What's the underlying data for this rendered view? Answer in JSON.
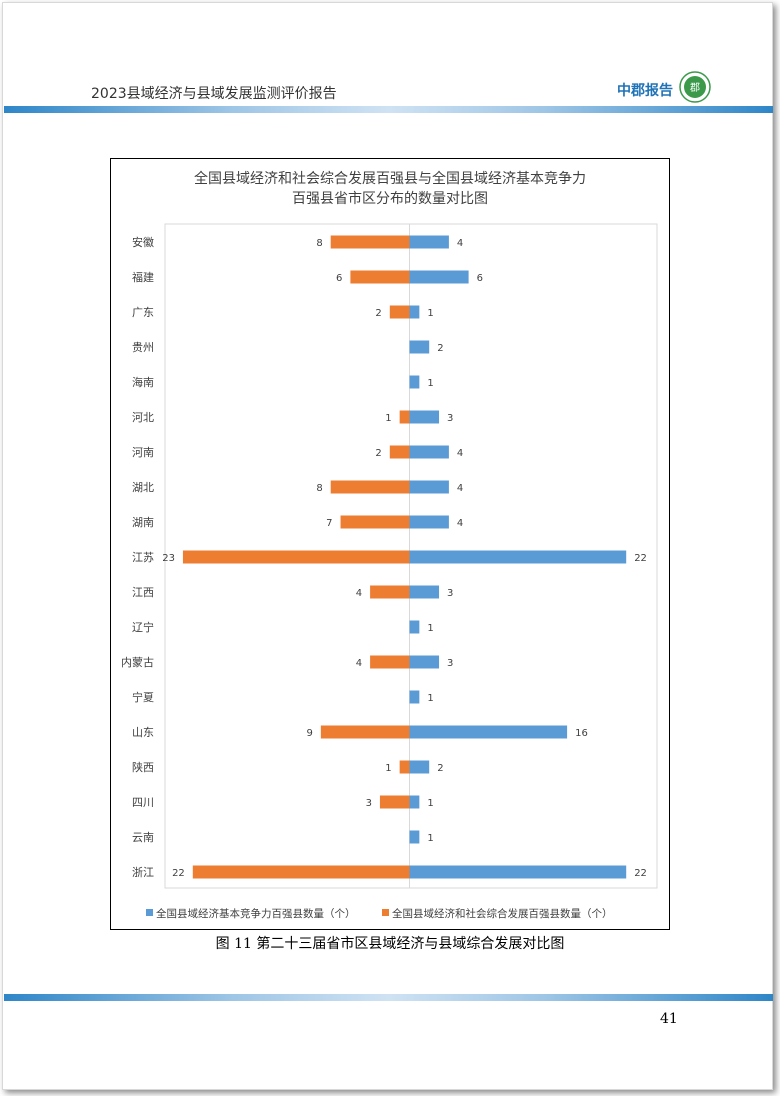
{
  "header": {
    "title": "2023县域经济与县域发展监测评价报告",
    "brand": "中郡报告",
    "logo_text": "郡"
  },
  "colors": {
    "blue": "#5b9bd5",
    "orange": "#ed7d31",
    "accent": "#2e86c8"
  },
  "chart_data": {
    "type": "bar",
    "orientation": "horizontal-diverging",
    "title_lines": [
      "全国县域经济和社会综合发展百强县与全国县域经济基本竞争力",
      "百强县省市区分布的数量对比图"
    ],
    "categories": [
      "安徽",
      "福建",
      "广东",
      "贵州",
      "海南",
      "河北",
      "河南",
      "湖北",
      "湖南",
      "江苏",
      "江西",
      "辽宁",
      "内蒙古",
      "宁夏",
      "山东",
      "陕西",
      "四川",
      "云南",
      "浙江"
    ],
    "series": [
      {
        "name": "全国县域经济基本竞争力百强县数量（个）",
        "side": "right",
        "values": [
          4,
          6,
          1,
          2,
          1,
          3,
          4,
          4,
          4,
          22,
          3,
          1,
          3,
          1,
          16,
          2,
          1,
          1,
          22
        ]
      },
      {
        "name": "全国县域经济和社会综合发展百强县数量（个）",
        "side": "left",
        "values": [
          8,
          6,
          2,
          null,
          null,
          1,
          2,
          8,
          7,
          23,
          4,
          null,
          4,
          null,
          9,
          1,
          3,
          null,
          22
        ]
      }
    ],
    "xlim": [
      -23,
      22
    ],
    "legend_position": "bottom",
    "grid": false
  },
  "caption": "图 11 第二十三届省市区县域经济与县域综合发展对比图",
  "page_number": "41"
}
